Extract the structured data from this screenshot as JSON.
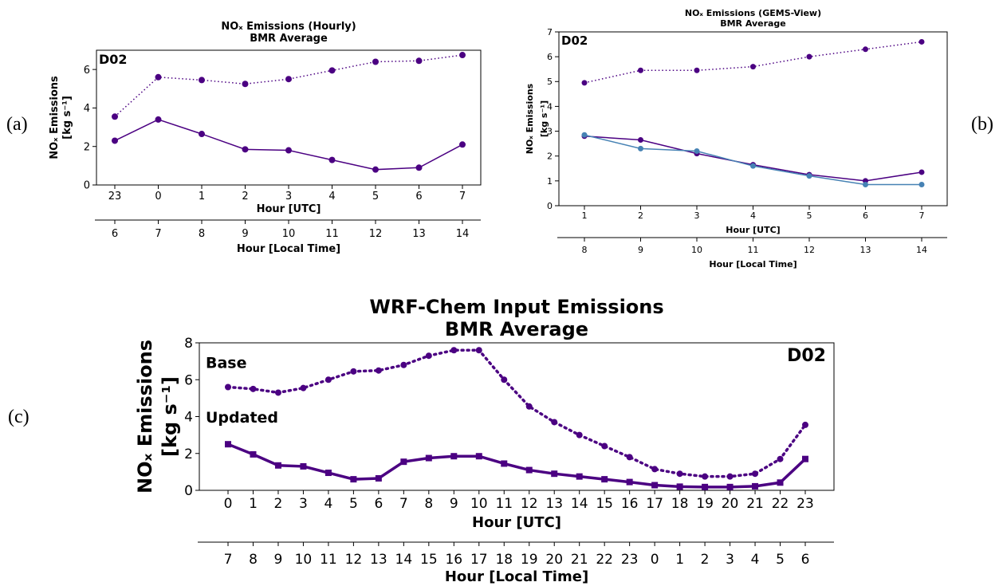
{
  "colors": {
    "purple": "#4b0082",
    "blue": "#4682b4"
  },
  "panel_labels": {
    "a": "(a)",
    "b": "(b)",
    "c": "(c)"
  },
  "chart_data": [
    {
      "type": "line",
      "title": "NOₓ Emissions (Hourly)",
      "subtitle": "BMR Average",
      "domain_label": "D02",
      "xlabel": "Hour [UTC]",
      "x2label": "Hour [Local Time]",
      "ylabel_1": "NOₓ Emissions",
      "ylabel_2": "[kg s⁻¹]",
      "ylim": [
        0,
        7
      ],
      "yticks": [
        "0",
        "2",
        "4",
        "6"
      ],
      "categories": [
        "23",
        "0",
        "1",
        "2",
        "3",
        "4",
        "5",
        "6",
        "7"
      ],
      "local_categories": [
        "6",
        "7",
        "8",
        "9",
        "10",
        "11",
        "12",
        "13",
        "14"
      ],
      "series": [
        {
          "style": "dotted",
          "color": "#4b0082",
          "values": [
            3.55,
            5.6,
            5.45,
            5.25,
            5.5,
            5.95,
            6.4,
            6.45,
            6.75
          ]
        },
        {
          "style": "solid",
          "color": "#4b0082",
          "values": [
            2.3,
            3.4,
            2.65,
            1.85,
            1.8,
            1.3,
            0.8,
            0.9,
            2.1
          ]
        }
      ]
    },
    {
      "type": "line",
      "title": "NOₓ Emissions (GEMS-View)",
      "subtitle": "BMR Average",
      "domain_label": "D02",
      "xlabel": "Hour [UTC]",
      "x2label": "Hour [Local Time]",
      "ylabel_1": "NOₓ Emissions",
      "ylabel_2": "[kg s⁻¹]",
      "ylim": [
        0,
        7
      ],
      "yticks": [
        "0",
        "1",
        "2",
        "3",
        "4",
        "5",
        "6",
        "7"
      ],
      "categories": [
        "1",
        "2",
        "3",
        "4",
        "5",
        "6",
        "7"
      ],
      "local_categories": [
        "8",
        "9",
        "10",
        "11",
        "12",
        "13",
        "14"
      ],
      "series": [
        {
          "style": "dotted",
          "color": "#4b0082",
          "values": [
            4.95,
            5.45,
            5.45,
            5.6,
            6.0,
            6.3,
            6.6
          ]
        },
        {
          "style": "solid",
          "color": "#4b0082",
          "values": [
            2.8,
            2.65,
            2.1,
            1.65,
            1.25,
            1.0,
            1.35
          ]
        },
        {
          "style": "solid",
          "color": "#4682b4",
          "values": [
            2.85,
            2.3,
            2.2,
            1.6,
            1.2,
            0.85,
            0.85
          ]
        }
      ]
    },
    {
      "type": "line",
      "title": "WRF-Chem Input Emissions",
      "subtitle": "BMR Average",
      "domain_label": "D02",
      "xlabel": "Hour [UTC]",
      "x2label": "Hour [Local Time]",
      "ylabel_1": "NOₓ Emissions",
      "ylabel_2": "[kg s⁻¹]",
      "ylim": [
        0,
        8
      ],
      "yticks": [
        "0",
        "2",
        "4",
        "6",
        "8"
      ],
      "categories": [
        "0",
        "1",
        "2",
        "3",
        "4",
        "5",
        "6",
        "7",
        "8",
        "9",
        "10",
        "11",
        "12",
        "13",
        "14",
        "15",
        "16",
        "17",
        "18",
        "19",
        "20",
        "21",
        "22",
        "23"
      ],
      "local_categories": [
        "7",
        "8",
        "9",
        "10",
        "11",
        "12",
        "13",
        "14",
        "15",
        "16",
        "17",
        "18",
        "19",
        "20",
        "21",
        "22",
        "23",
        "0",
        "1",
        "2",
        "3",
        "4",
        "5",
        "6"
      ],
      "series": [
        {
          "name": "Base",
          "style": "dotted",
          "color": "#4b0082",
          "values": [
            5.6,
            5.5,
            5.3,
            5.55,
            6.0,
            6.45,
            6.5,
            6.8,
            7.3,
            7.6,
            7.6,
            6.0,
            4.55,
            3.7,
            3.0,
            2.4,
            1.8,
            1.15,
            0.9,
            0.75,
            0.75,
            0.9,
            1.7,
            3.55
          ]
        },
        {
          "name": "Updated",
          "style": "solid",
          "color": "#4b0082",
          "values": [
            2.5,
            1.95,
            1.35,
            1.3,
            0.95,
            0.6,
            0.65,
            1.55,
            1.75,
            1.85,
            1.85,
            1.45,
            1.1,
            0.9,
            0.75,
            0.6,
            0.45,
            0.28,
            0.2,
            0.18,
            0.18,
            0.22,
            0.42,
            1.7
          ]
        }
      ]
    }
  ]
}
